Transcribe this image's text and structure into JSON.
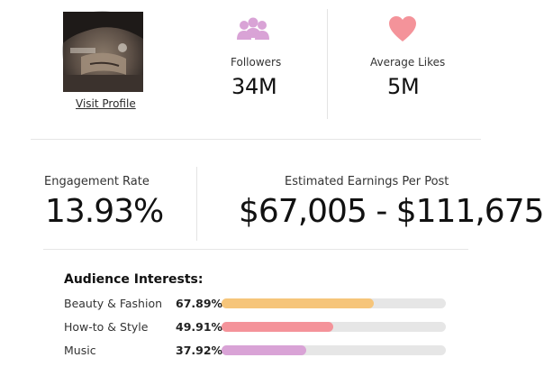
{
  "profile": {
    "visit_label": "Visit Profile"
  },
  "stats": {
    "followers_label": "Followers",
    "followers_value": "34M",
    "followers_icon": "people-icon",
    "likes_label": "Average Likes",
    "likes_value": "5M",
    "likes_icon": "heart-icon"
  },
  "engagement": {
    "label": "Engagement Rate",
    "value": "13.93%"
  },
  "earnings": {
    "label": "Estimated Earnings Per Post",
    "value": "$67,005 - $111,675"
  },
  "audience": {
    "title": "Audience Interests:",
    "items": [
      {
        "name": "Beauty & Fashion",
        "percent_label": "67.89%",
        "percent": 67.89,
        "color": "#f6c57a"
      },
      {
        "name": "How-to & Style",
        "percent_label": "49.91%",
        "percent": 49.91,
        "color": "#f4939a"
      },
      {
        "name": "Music",
        "percent_label": "37.92%",
        "percent": 37.92,
        "color": "#d9a3d6"
      }
    ]
  },
  "colors": {
    "icon_accent": "#d9a3d6",
    "heart": "#f4939a"
  }
}
